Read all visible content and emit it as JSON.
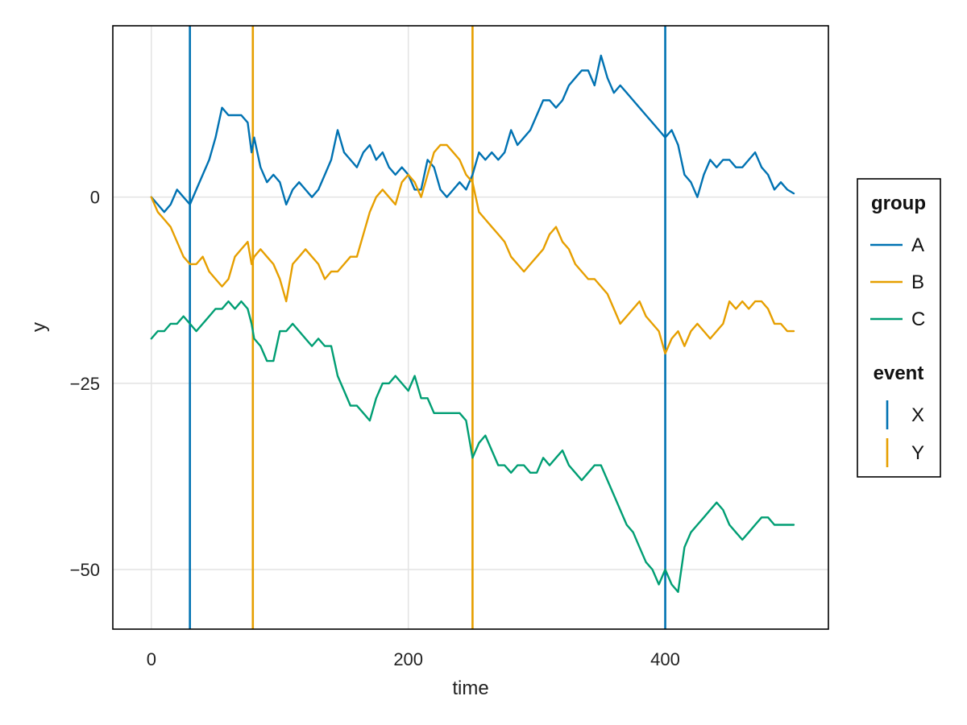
{
  "chart_data": {
    "type": "line",
    "title": "",
    "xlabel": "time",
    "ylabel": "y",
    "xlim": [
      -30,
      527
    ],
    "ylim": [
      -58,
      23
    ],
    "xticks": [
      0,
      200,
      400
    ],
    "yticks": [
      0,
      -25,
      -50
    ],
    "ytick_labels": [
      "0",
      "−25",
      "−50"
    ],
    "grid": true,
    "legend_placement": "right",
    "legend": {
      "group_title": "group",
      "event_title": "event"
    },
    "series": [
      {
        "name": "A",
        "color": "#0072B2",
        "x": [
          0,
          5,
          10,
          15,
          20,
          25,
          30,
          35,
          40,
          45,
          50,
          55,
          60,
          65,
          70,
          75,
          78,
          80,
          85,
          90,
          95,
          100,
          105,
          110,
          115,
          120,
          125,
          130,
          135,
          140,
          145,
          150,
          155,
          160,
          165,
          170,
          175,
          180,
          185,
          190,
          195,
          200,
          205,
          210,
          215,
          220,
          225,
          230,
          235,
          240,
          245,
          250,
          255,
          260,
          265,
          270,
          275,
          280,
          285,
          290,
          295,
          300,
          305,
          310,
          315,
          320,
          325,
          330,
          335,
          340,
          345,
          350,
          355,
          360,
          365,
          370,
          375,
          380,
          385,
          390,
          395,
          400,
          405,
          410,
          415,
          420,
          425,
          430,
          435,
          440,
          445,
          450,
          455,
          460,
          465,
          470,
          475,
          480,
          485,
          490,
          495,
          500
        ],
        "values": [
          0,
          -1,
          -2,
          -1,
          1,
          0,
          -1,
          1,
          3,
          5,
          8,
          12,
          11,
          11,
          11,
          10,
          6,
          8,
          4,
          2,
          3,
          2,
          -1,
          1,
          2,
          1,
          0,
          1,
          3,
          5,
          9,
          6,
          5,
          4,
          6,
          7,
          5,
          6,
          4,
          3,
          4,
          3,
          1,
          1,
          5,
          4,
          1,
          0,
          1,
          2,
          1,
          3,
          6,
          5,
          6,
          5,
          6,
          9,
          7,
          8,
          9,
          11,
          13,
          13,
          12,
          13,
          15,
          16,
          17,
          17,
          15,
          19,
          16,
          14,
          15,
          14,
          13,
          12,
          11,
          10,
          9,
          8,
          9,
          7,
          3,
          2,
          0,
          3,
          5,
          4,
          5,
          5,
          4,
          4,
          5,
          6,
          4,
          3,
          1,
          2,
          1,
          0.5
        ]
      },
      {
        "name": "B",
        "color": "#E69F00",
        "x": [
          0,
          5,
          10,
          15,
          20,
          25,
          30,
          35,
          40,
          45,
          50,
          55,
          60,
          65,
          70,
          75,
          78,
          80,
          85,
          90,
          95,
          100,
          105,
          110,
          115,
          120,
          125,
          130,
          135,
          140,
          145,
          150,
          155,
          160,
          165,
          170,
          175,
          180,
          185,
          190,
          195,
          200,
          205,
          210,
          215,
          220,
          225,
          230,
          235,
          240,
          245,
          250,
          255,
          260,
          265,
          270,
          275,
          280,
          285,
          290,
          295,
          300,
          305,
          310,
          315,
          320,
          325,
          330,
          335,
          340,
          345,
          350,
          355,
          360,
          365,
          370,
          375,
          380,
          385,
          390,
          395,
          400,
          405,
          410,
          415,
          420,
          425,
          430,
          435,
          440,
          445,
          450,
          455,
          460,
          465,
          470,
          475,
          480,
          485,
          490,
          495,
          500
        ],
        "values": [
          0,
          -2,
          -3,
          -4,
          -6,
          -8,
          -9,
          -9,
          -8,
          -10,
          -11,
          -12,
          -11,
          -8,
          -7,
          -6,
          -9,
          -8,
          -7,
          -8,
          -9,
          -11,
          -14,
          -9,
          -8,
          -7,
          -8,
          -9,
          -11,
          -10,
          -10,
          -9,
          -8,
          -8,
          -5,
          -2,
          0,
          1,
          0,
          -1,
          2,
          3,
          2,
          0,
          3,
          6,
          7,
          7,
          6,
          5,
          3,
          2,
          -2,
          -3,
          -4,
          -5,
          -6,
          -8,
          -9,
          -10,
          -9,
          -8,
          -7,
          -5,
          -4,
          -6,
          -7,
          -9,
          -10,
          -11,
          -11,
          -12,
          -13,
          -15,
          -17,
          -16,
          -15,
          -14,
          -16,
          -17,
          -18,
          -21,
          -19,
          -18,
          -20,
          -18,
          -17,
          -18,
          -19,
          -18,
          -17,
          -14,
          -15,
          -14,
          -15,
          -14,
          -14,
          -15,
          -17,
          -17,
          -18,
          -18
        ]
      },
      {
        "name": "C",
        "color": "#009E73",
        "x": [
          0,
          5,
          10,
          15,
          20,
          25,
          30,
          35,
          40,
          45,
          50,
          55,
          60,
          65,
          70,
          75,
          78,
          80,
          85,
          90,
          95,
          100,
          105,
          110,
          115,
          120,
          125,
          130,
          135,
          140,
          145,
          150,
          155,
          160,
          165,
          170,
          175,
          180,
          185,
          190,
          195,
          200,
          205,
          210,
          215,
          220,
          225,
          230,
          235,
          240,
          245,
          250,
          255,
          260,
          265,
          270,
          275,
          280,
          285,
          290,
          295,
          300,
          305,
          310,
          315,
          320,
          325,
          330,
          335,
          340,
          345,
          350,
          355,
          360,
          365,
          370,
          375,
          380,
          385,
          390,
          395,
          400,
          405,
          410,
          415,
          420,
          425,
          430,
          435,
          440,
          445,
          450,
          455,
          460,
          465,
          470,
          475,
          480,
          485,
          490,
          495,
          500
        ],
        "values": [
          -19,
          -18,
          -18,
          -17,
          -17,
          -16,
          -17,
          -18,
          -17,
          -16,
          -15,
          -15,
          -14,
          -15,
          -14,
          -15,
          -17,
          -19,
          -20,
          -22,
          -22,
          -18,
          -18,
          -17,
          -18,
          -19,
          -20,
          -19,
          -20,
          -20,
          -24,
          -26,
          -28,
          -28,
          -29,
          -30,
          -27,
          -25,
          -25,
          -24,
          -25,
          -26,
          -24,
          -27,
          -27,
          -29,
          -29,
          -29,
          -29,
          -29,
          -30,
          -35,
          -33,
          -32,
          -34,
          -36,
          -36,
          -37,
          -36,
          -36,
          -37,
          -37,
          -35,
          -36,
          -35,
          -34,
          -36,
          -37,
          -38,
          -37,
          -36,
          -36,
          -38,
          -40,
          -42,
          -44,
          -45,
          -47,
          -49,
          -50,
          -52,
          -50,
          -52,
          -53,
          -47,
          -45,
          -44,
          -43,
          -42,
          -41,
          -42,
          -44,
          -45,
          -46,
          -45,
          -44,
          -43,
          -43,
          -44,
          -44,
          -44,
          -44
        ]
      }
    ],
    "events": [
      {
        "name": "X",
        "color": "#0072B2",
        "x": [
          30,
          400
        ]
      },
      {
        "name": "Y",
        "color": "#E69F00",
        "x": [
          79,
          250
        ]
      }
    ]
  }
}
